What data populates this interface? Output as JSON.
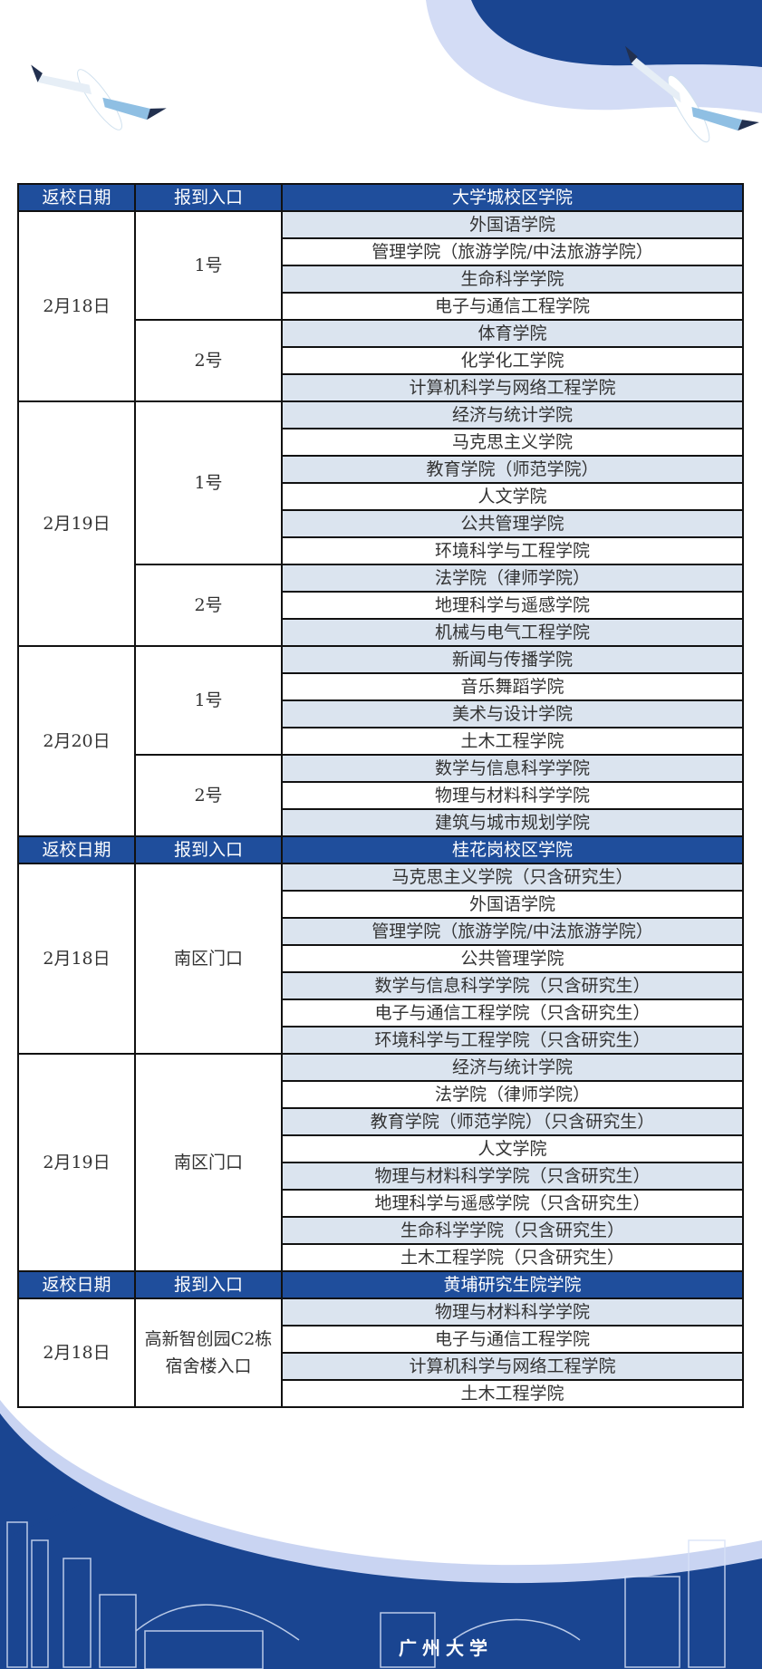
{
  "colors": {
    "header": "#1f4e9c",
    "shaded_row": "#dbe4ef",
    "banner": "#1a4591"
  },
  "footer": {
    "logo_text": "广州大学"
  },
  "sections": [
    {
      "header": {
        "date": "返校日期",
        "entry": "报到入口",
        "college": "大学城校区学院"
      },
      "groups": [
        {
          "date": "2月18日",
          "entries": [
            {
              "entry": "1号",
              "colleges": [
                "外国语学院",
                "管理学院（旅游学院/中法旅游学院）",
                "生命科学学院",
                "电子与通信工程学院"
              ]
            },
            {
              "entry": "2号",
              "colleges": [
                "体育学院",
                "化学化工学院",
                "计算机科学与网络工程学院"
              ]
            }
          ]
        },
        {
          "date": "2月19日",
          "entries": [
            {
              "entry": "1号",
              "colleges": [
                "经济与统计学院",
                "马克思主义学院",
                "教育学院（师范学院）",
                "人文学院",
                "公共管理学院",
                "环境科学与工程学院"
              ]
            },
            {
              "entry": "2号",
              "colleges": [
                "法学院（律师学院）",
                "地理科学与遥感学院",
                "机械与电气工程学院"
              ]
            }
          ]
        },
        {
          "date": "2月20日",
          "entries": [
            {
              "entry": "1号",
              "colleges": [
                "新闻与传播学院",
                "音乐舞蹈学院",
                "美术与设计学院",
                "土木工程学院"
              ]
            },
            {
              "entry": "2号",
              "colleges": [
                "数学与信息科学学院",
                "物理与材料科学学院",
                "建筑与城市规划学院"
              ]
            }
          ]
        }
      ]
    },
    {
      "header": {
        "date": "返校日期",
        "entry": "报到入口",
        "college": "桂花岗校区学院"
      },
      "groups": [
        {
          "date": "2月18日",
          "entries": [
            {
              "entry": "南区门口",
              "colleges": [
                "马克思主义学院（只含研究生）",
                "外国语学院",
                "管理学院（旅游学院/中法旅游学院）",
                "公共管理学院",
                "数学与信息科学学院（只含研究生）",
                "电子与通信工程学院（只含研究生）",
                "环境科学与工程学院（只含研究生）"
              ]
            }
          ]
        },
        {
          "date": "2月19日",
          "entries": [
            {
              "entry": "南区门口",
              "colleges": [
                "经济与统计学院",
                "法学院（律师学院）",
                "教育学院（师范学院）（只含研究生）",
                "人文学院",
                "物理与材料科学学院（只含研究生）",
                "地理科学与遥感学院（只含研究生）",
                "生命科学学院（只含研究生）",
                "土木工程学院（只含研究生）"
              ]
            }
          ]
        }
      ]
    },
    {
      "header": {
        "date": "返校日期",
        "entry": "报到入口",
        "college": "黄埔研究生院学院"
      },
      "groups": [
        {
          "date": "2月18日",
          "entries": [
            {
              "entry": "高新智创园C2栋宿舍楼入口",
              "colleges": [
                "物理与材料科学学院",
                "电子与通信工程学院",
                "计算机科学与网络工程学院",
                "土木工程学院"
              ]
            }
          ]
        }
      ]
    }
  ]
}
